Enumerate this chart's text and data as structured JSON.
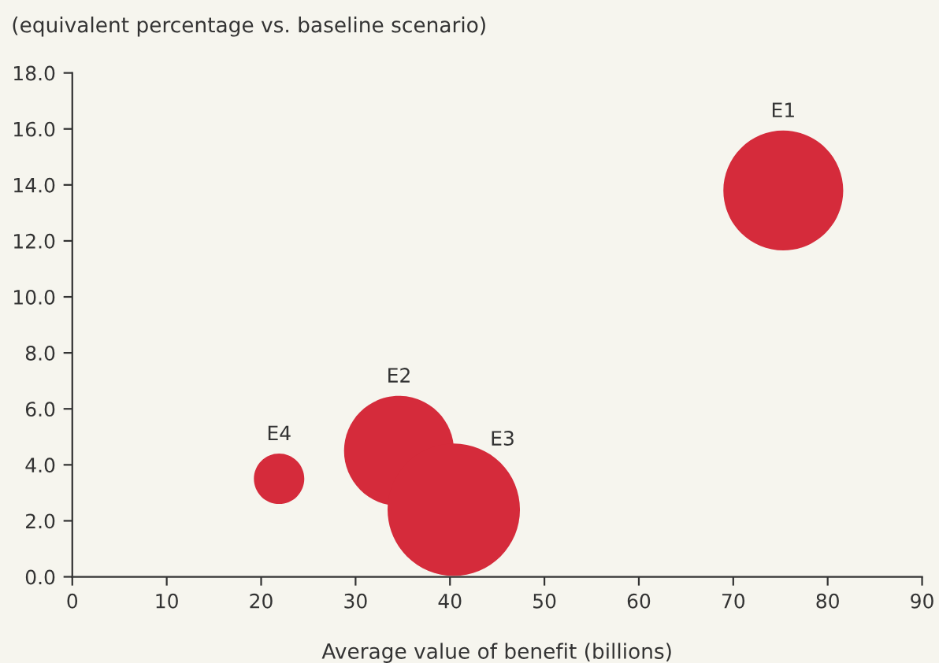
{
  "chart_data": {
    "type": "bubble",
    "title": "(equivalent percentage vs. baseline scenario)",
    "xlabel": "Average value of benefit (billions)",
    "series": [
      {
        "color": "#d52b3b",
        "x": [
          75.3,
          34.6,
          40.4,
          21.9
        ],
        "values": [
          13.8,
          4.5,
          2.4,
          3.5
        ],
        "sizes": [
          0.82,
          0.69,
          1,
          0.145
        ]
      }
    ],
    "annotations": [
      "E1",
      "E2",
      "E3",
      "E4"
    ],
    "xlim": [
      0,
      90
    ],
    "xticks": [
      0,
      10,
      20,
      30,
      40,
      50,
      60,
      70,
      80,
      90
    ],
    "ylim": [
      0,
      18
    ],
    "yticks": [
      {
        "value": 0,
        "label": "0.0"
      },
      {
        "value": 2,
        "label": "2.0"
      },
      {
        "value": 4,
        "label": "4.0"
      },
      {
        "value": 6,
        "label": "6.0"
      },
      {
        "value": 8,
        "label": "8.0"
      },
      {
        "value": 10,
        "label": "10.0"
      },
      {
        "value": 12,
        "label": "12.0"
      },
      {
        "value": 14,
        "label": "14.0"
      },
      {
        "value": 16,
        "label": "16.0"
      },
      {
        "value": 18,
        "label": "18.0"
      }
    ],
    "grid": false,
    "legend": false
  }
}
